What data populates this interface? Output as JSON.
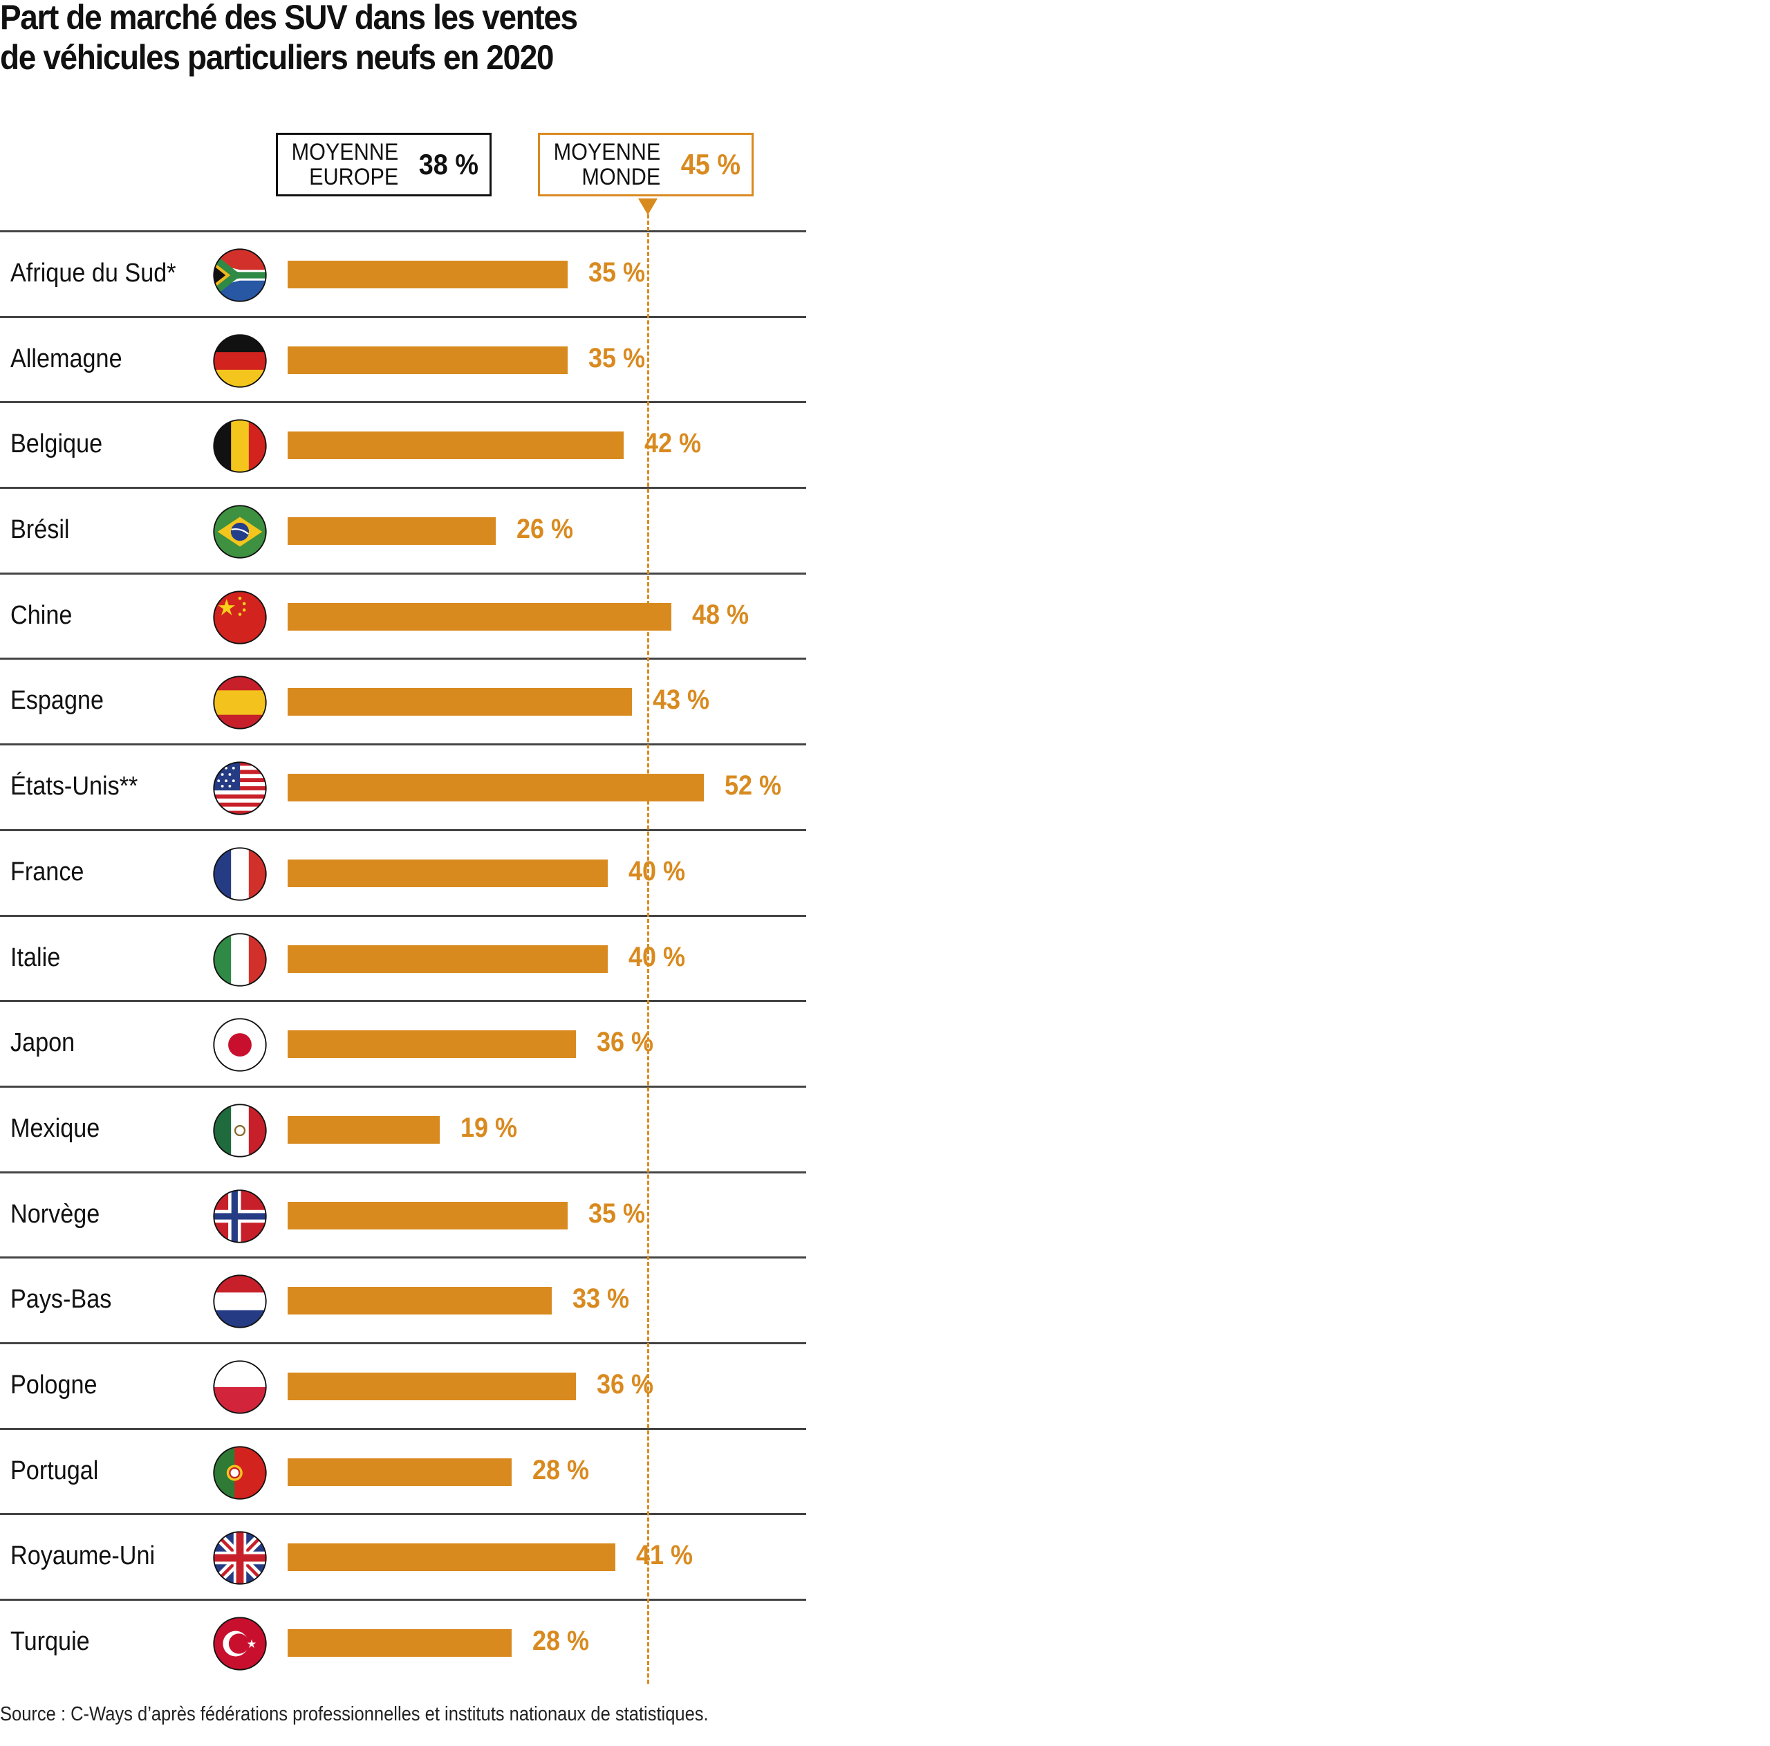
{
  "chart_data": {
    "type": "bar",
    "orientation": "horizontal",
    "title_line1": "Part de marché des SUV dans les ventes",
    "title_line2": "de véhicules particuliers neufs en 2020",
    "categories": [
      "Afrique du Sud*",
      "Allemagne",
      "Belgique",
      "Brésil",
      "Chine",
      "Espagne",
      "États-Unis**",
      "France",
      "Italie",
      "Japon",
      "Mexique",
      "Norvège",
      "Pays-Bas",
      "Pologne",
      "Portugal",
      "Royaume-Uni",
      "Turquie"
    ],
    "flags": [
      "za",
      "de",
      "be",
      "br",
      "cn",
      "es",
      "us",
      "fr",
      "it",
      "jp",
      "mx",
      "no",
      "nl",
      "pl",
      "pt",
      "gb",
      "tr"
    ],
    "values": [
      35,
      35,
      42,
      26,
      48,
      43,
      52,
      40,
      40,
      36,
      19,
      35,
      33,
      36,
      28,
      41,
      28
    ],
    "value_suffix": "%",
    "value_labels": [
      "35 %",
      "35 %",
      "42 %",
      "26 %",
      "48 %",
      "43 %",
      "52 %",
      "40 %",
      "40 %",
      "36 %",
      "19 %",
      "35 %",
      "33 %",
      "36 %",
      "28 %",
      "41 %",
      "28 %"
    ],
    "xlim": [
      0,
      100
    ],
    "unit": "%",
    "reference_lines": [
      {
        "label_line1": "MOYENNE",
        "label_line2": "EUROPE",
        "value": 38,
        "value_label": "38 %",
        "color": "#111111",
        "line_drawn": false
      },
      {
        "label_line1": "MOYENNE",
        "label_line2": "MONDE",
        "value": 45,
        "value_label": "45 %",
        "color": "#D98A1F",
        "line_drawn": true
      }
    ],
    "bar_color": "#D98A1F",
    "grid": false,
    "source": "Source : C-Ways d’après fédérations professionnelles et instituts nationaux de statistiques."
  }
}
